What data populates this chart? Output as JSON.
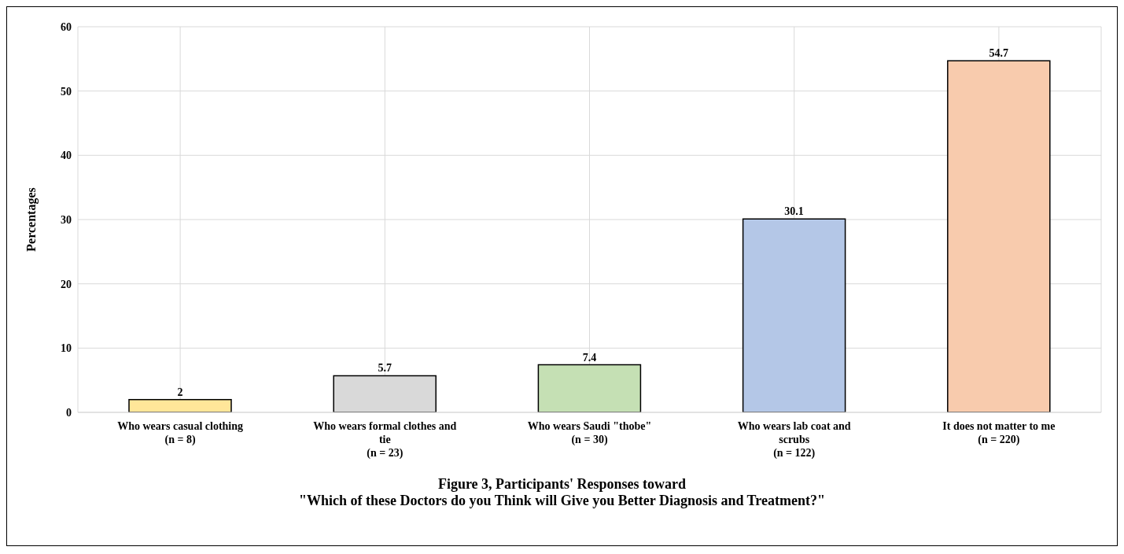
{
  "chart_data": {
    "type": "bar",
    "title": "Figure 3, Participants' Responses toward\n\"Which of these Doctors do you Think will Give you Better Diagnosis and Treatment?\"",
    "ylabel": "Percentages",
    "categories": [
      "Who wears casual clothing\n(n = 8)",
      "Who wears formal clothes and tie\n(n = 23)",
      "Who wears Saudi \"thobe\"\n(n = 30)",
      "Who wears lab coat and scrubs\n(n = 122)",
      "It does not matter to me\n(n = 220)"
    ],
    "values": [
      2,
      5.7,
      7.4,
      30.1,
      54.7
    ],
    "colors": [
      "#ffe699",
      "#d9d9d9",
      "#c5e0b4",
      "#b4c7e7",
      "#f8cbad"
    ],
    "ylim": [
      0,
      60
    ],
    "yticks": [
      0,
      10,
      20,
      30,
      40,
      50,
      60
    ],
    "grid": true,
    "data_labels": true
  }
}
